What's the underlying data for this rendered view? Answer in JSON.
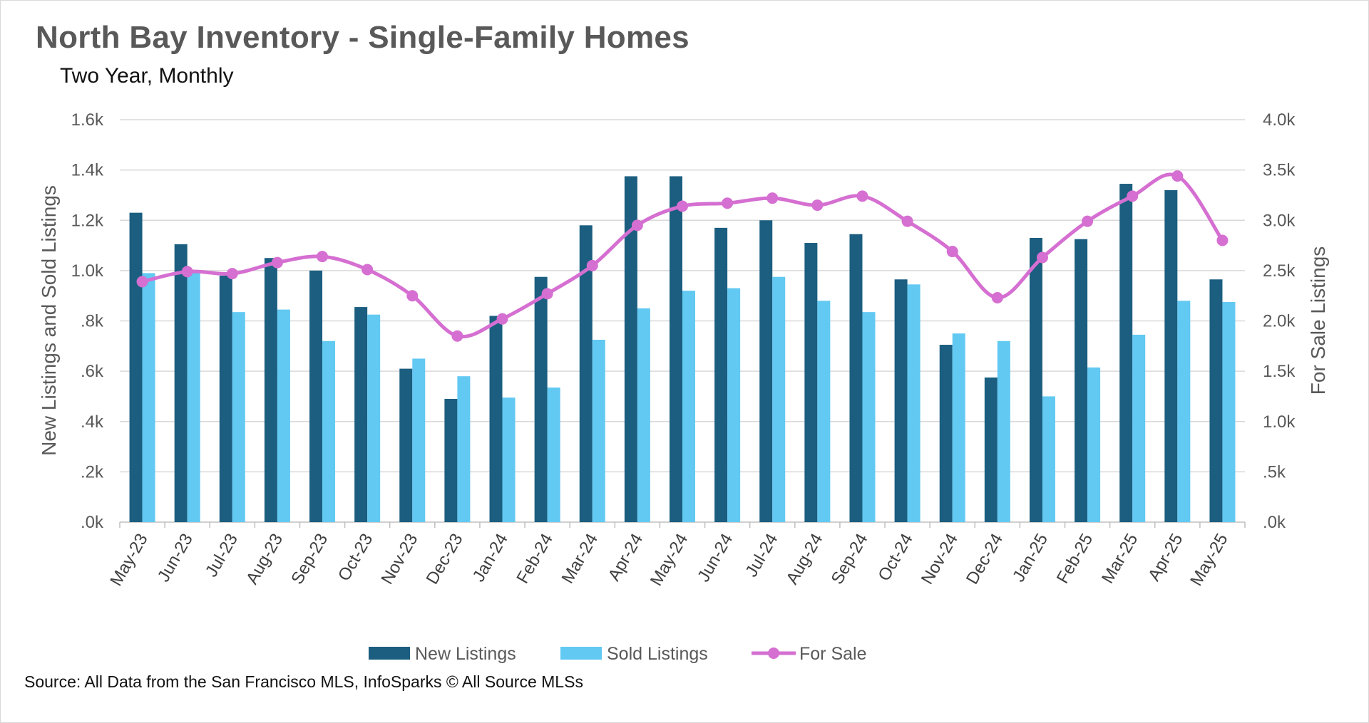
{
  "chart_data": {
    "type": "bar+line",
    "title": "North Bay Inventory - Single-Family Homes",
    "subtitle": "Two Year, Monthly",
    "categories": [
      "May-23",
      "Jun-23",
      "Jul-23",
      "Aug-23",
      "Sep-23",
      "Oct-23",
      "Nov-23",
      "Dec-23",
      "Jan-24",
      "Feb-24",
      "Mar-24",
      "Apr-24",
      "May-24",
      "Jun-24",
      "Jul-24",
      "Aug-24",
      "Sep-24",
      "Oct-24",
      "Nov-24",
      "Dec-24",
      "Jan-25",
      "Feb-25",
      "Mar-25",
      "Apr-25",
      "May-25"
    ],
    "series": [
      {
        "name": "New Listings",
        "type": "bar",
        "axis": "left",
        "color": "#1b5e80",
        "values": [
          1230,
          1105,
          980,
          1050,
          1000,
          855,
          610,
          490,
          820,
          975,
          1180,
          1375,
          1375,
          1170,
          1200,
          1110,
          1145,
          965,
          705,
          575,
          1130,
          1125,
          1345,
          1320,
          965
        ]
      },
      {
        "name": "Sold Listings",
        "type": "bar",
        "axis": "left",
        "color": "#62c9f2",
        "values": [
          990,
          990,
          835,
          845,
          720,
          825,
          650,
          580,
          495,
          535,
          725,
          850,
          920,
          930,
          975,
          880,
          835,
          945,
          750,
          720,
          500,
          615,
          745,
          880,
          875
        ]
      },
      {
        "name": "For Sale",
        "type": "line",
        "axis": "right",
        "color": "#d56fd1",
        "values": [
          2390,
          2490,
          2470,
          2580,
          2640,
          2510,
          2250,
          1850,
          2020,
          2270,
          2550,
          2950,
          3140,
          3170,
          3220,
          3150,
          3240,
          2990,
          2690,
          2230,
          2630,
          2990,
          3240,
          3440,
          2800
        ]
      }
    ],
    "left_axis": {
      "title": "New Listings and Sold Listings",
      "ylim": [
        0,
        1600
      ],
      "tick_labels": [
        ".0k",
        ".2k",
        ".4k",
        ".6k",
        ".8k",
        "1.0k",
        "1.2k",
        "1.4k",
        "1.6k"
      ]
    },
    "right_axis": {
      "title": "For Sale Listings",
      "ylim": [
        0,
        4000
      ],
      "tick_labels": [
        ".0k",
        ".5k",
        "1.0k",
        "1.5k",
        "2.0k",
        "2.5k",
        "3.0k",
        "3.5k",
        "4.0k"
      ]
    },
    "legend_position": "bottom",
    "grid": true
  },
  "source": "Source: All Data from the San Francisco MLS, InfoSparks © All Source MLSs"
}
